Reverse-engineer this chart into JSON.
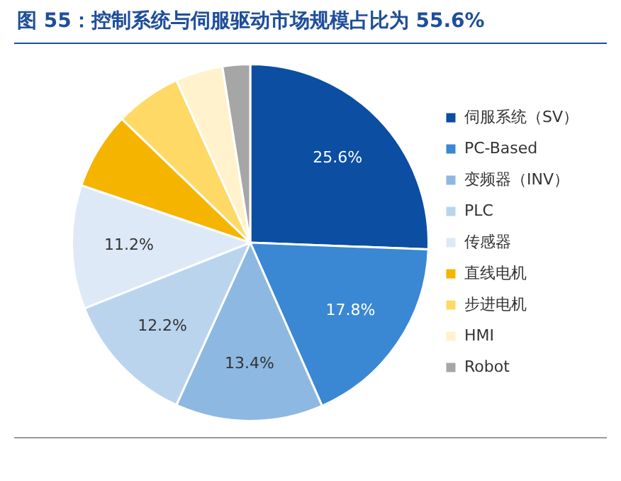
{
  "chart_data": {
    "type": "pie",
    "title": "图 55：控制系统与伺服驱动市场规模占比为 55.6%",
    "categories": [
      "伺服系统（SV）",
      "PC-Based",
      "变频器（INV）",
      "PLC",
      "传感器",
      "直线电机",
      "步进电机",
      "HMI",
      "Robot"
    ],
    "values": [
      25.6,
      17.8,
      13.4,
      12.2,
      11.2,
      7.0,
      6.0,
      4.3,
      2.5
    ],
    "colors": [
      "#0b4ea2",
      "#3a87d4",
      "#8db8e2",
      "#bad4ee",
      "#dde9f6",
      "#f5b400",
      "#ffd966",
      "#fff2cc",
      "#a6a6a6"
    ],
    "value_labels": [
      "25.6%",
      "17.8%",
      "13.4%",
      "12.2%",
      "11.2%",
      null,
      null,
      null,
      null
    ],
    "legend": "right"
  }
}
